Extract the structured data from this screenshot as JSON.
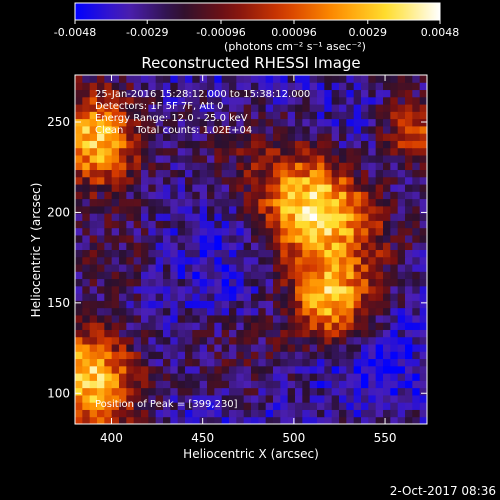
{
  "colorbar": {
    "ticks": [
      "-0.0048",
      "-0.0029",
      "-0.00096",
      "0.00096",
      "0.0029",
      "0.0048"
    ],
    "tick_values": [
      -0.0048,
      -0.0029,
      -0.00096,
      0.00096,
      0.0029,
      0.0048
    ],
    "units_label": "(photons cm⁻² s⁻¹ asec⁻²)",
    "range": [
      -0.0048,
      0.0048
    ],
    "colormap": [
      "#0000ff",
      "#4b1fb4",
      "#2a1030",
      "#7a1010",
      "#d43a00",
      "#ff9000",
      "#ffe030",
      "#ffffff"
    ]
  },
  "info": {
    "line1": "25-Jan-2016 15:28:12.000 to 15:38:12.000",
    "line2": "Detectors: 1F 5F 7F, Att 0",
    "line3": "Energy Range: 12.0 - 25.0 keV",
    "line4": "Clean    Total counts: 1.02E+04",
    "peak": "Position of Peak = [399,230]"
  },
  "footer": {
    "timestamp": "2-Oct-2017 08:36"
  },
  "chart_data": {
    "type": "heatmap",
    "title": "Reconstructed RHESSI Image",
    "xlabel": "Heliocentric X (arcsec)",
    "ylabel": "Heliocentric Y (arcsec)",
    "xlim": [
      380,
      573
    ],
    "ylim": [
      83,
      276
    ],
    "xticks": [
      400,
      450,
      500,
      550
    ],
    "xtick_labels": [
      "400",
      "450",
      "500",
      "550"
    ],
    "yticks": [
      100,
      150,
      200,
      250
    ],
    "ytick_labels": [
      "100",
      "150",
      "200",
      "250"
    ],
    "zlim": [
      -0.0048,
      0.0048
    ],
    "peak_position": [
      399,
      230
    ],
    "sources": [
      {
        "x": 392,
        "y": 240,
        "peak": 0.0044,
        "sigma": 18
      },
      {
        "x": 510,
        "y": 202,
        "peak": 0.004,
        "sigma": 22
      },
      {
        "x": 388,
        "y": 110,
        "peak": 0.0042,
        "sigma": 20
      },
      {
        "x": 520,
        "y": 150,
        "peak": 0.0025,
        "sigma": 16
      },
      {
        "x": 565,
        "y": 245,
        "peak": 0.0012,
        "sigma": 14
      }
    ]
  }
}
